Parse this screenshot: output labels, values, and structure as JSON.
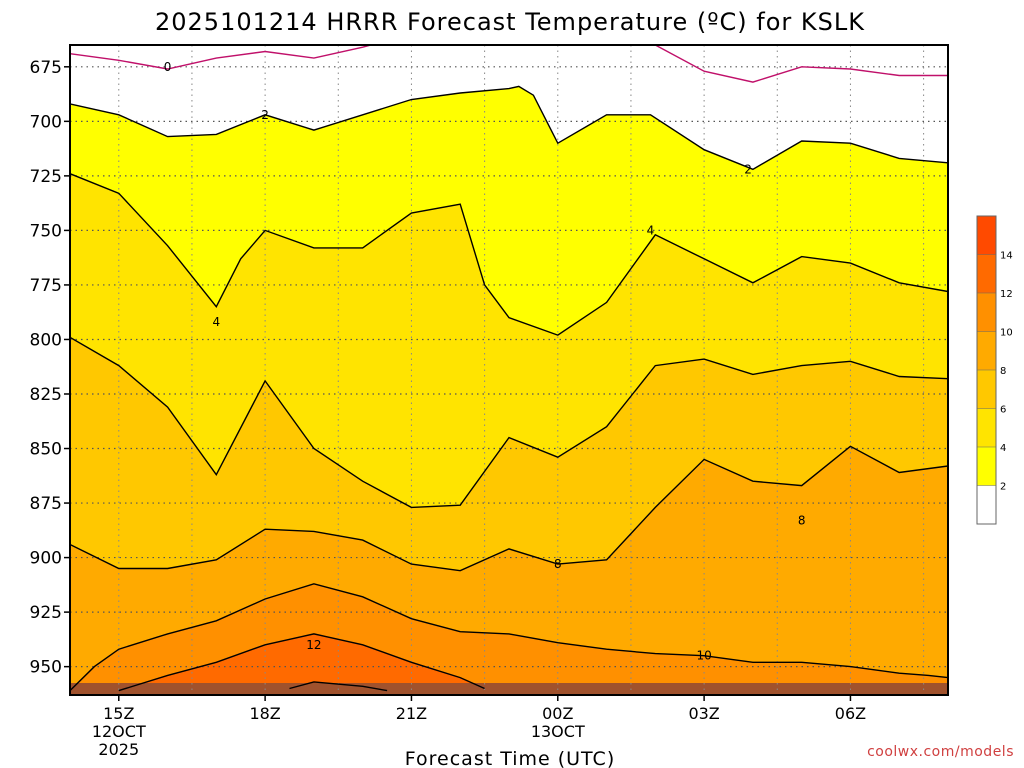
{
  "chart_data": {
    "type": "contour",
    "title": "2025101214 HRRR Forecast Temperature (ºC) for KSLK",
    "xlabel": "Forecast Time (UTC)",
    "ylabel": "",
    "y_axis": {
      "range": [
        665,
        963
      ],
      "inverted": true,
      "ticks": [
        675,
        700,
        725,
        750,
        775,
        800,
        825,
        850,
        875,
        900,
        925,
        950
      ]
    },
    "x_axis": {
      "range": [
        14.0,
        32.0
      ],
      "ticks": [
        {
          "hour": 15,
          "label": "15Z",
          "date": "12OCT",
          "year": "2025"
        },
        {
          "hour": 18,
          "label": "18Z"
        },
        {
          "hour": 21,
          "label": "21Z"
        },
        {
          "hour": 24,
          "label": "00Z",
          "date": "13OCT"
        },
        {
          "hour": 27,
          "label": "03Z"
        },
        {
          "hour": 30,
          "label": "06Z"
        }
      ]
    },
    "grid": true,
    "surface_color": "#a0522d",
    "surface_pressure": 957.5,
    "contour_labels": [
      {
        "text": "0",
        "x": 16.0,
        "p": 675
      },
      {
        "text": "2",
        "x": 18.0,
        "p": 697
      },
      {
        "text": "2",
        "x": 27.9,
        "p": 722
      },
      {
        "text": "4",
        "x": 17.0,
        "p": 792
      },
      {
        "text": "4",
        "x": 25.9,
        "p": 750
      },
      {
        "text": "8",
        "x": 24.0,
        "p": 903
      },
      {
        "text": "8",
        "x": 29.0,
        "p": 883
      },
      {
        "text": "10",
        "x": 27.0,
        "p": 945
      },
      {
        "text": "12",
        "x": 19.0,
        "p": 940
      }
    ],
    "isotherms": [
      {
        "level": 0,
        "color": "#c0106a",
        "points": [
          [
            14.0,
            669
          ],
          [
            15.0,
            672
          ],
          [
            16.0,
            676
          ],
          [
            17.0,
            671
          ],
          [
            18.0,
            668
          ],
          [
            19.0,
            671
          ],
          [
            20.0,
            666
          ],
          [
            20.5,
            663
          ]
        ],
        "points2": [
          [
            25.6,
            663
          ],
          [
            26.0,
            665
          ],
          [
            27.0,
            677
          ],
          [
            28.0,
            682
          ],
          [
            29.0,
            675
          ],
          [
            30.0,
            676
          ],
          [
            31.0,
            679
          ],
          [
            32.0,
            679
          ]
        ]
      },
      {
        "level": 2,
        "color": "#000000",
        "fill": "#ffff00",
        "points": [
          [
            14.0,
            692
          ],
          [
            15.0,
            697
          ],
          [
            16.0,
            707
          ],
          [
            17.0,
            706
          ],
          [
            18.0,
            697
          ],
          [
            19.0,
            704
          ],
          [
            20.0,
            697
          ],
          [
            21.0,
            690
          ],
          [
            22.0,
            687
          ],
          [
            23.0,
            685
          ],
          [
            23.2,
            684
          ],
          [
            23.5,
            688
          ],
          [
            24.0,
            710
          ],
          [
            25.0,
            697
          ],
          [
            25.9,
            697
          ],
          [
            27.0,
            713
          ],
          [
            28.0,
            722
          ],
          [
            29.0,
            709
          ],
          [
            30.0,
            710
          ],
          [
            31.0,
            717
          ],
          [
            32.0,
            719
          ]
        ]
      },
      {
        "level": 4,
        "color": "#000000",
        "fill": "#ffe400",
        "points": [
          [
            14.0,
            724
          ],
          [
            15.0,
            733
          ],
          [
            16.0,
            757
          ],
          [
            17.0,
            785
          ],
          [
            17.5,
            763
          ],
          [
            18.0,
            750
          ],
          [
            19.0,
            758
          ],
          [
            19.5,
            758
          ],
          [
            20.0,
            758
          ],
          [
            21.0,
            742
          ],
          [
            22.0,
            738
          ],
          [
            22.5,
            775
          ],
          [
            23.0,
            790
          ],
          [
            24.0,
            798
          ],
          [
            25.0,
            783
          ],
          [
            26.0,
            752
          ],
          [
            27.0,
            763
          ],
          [
            28.0,
            774
          ],
          [
            29.0,
            762
          ],
          [
            30.0,
            765
          ],
          [
            31.0,
            774
          ],
          [
            32.0,
            778
          ]
        ]
      },
      {
        "level": 6,
        "color": "#000000",
        "fill": "#ffc800",
        "points": [
          [
            14.0,
            799
          ],
          [
            15.0,
            812
          ],
          [
            16.0,
            831
          ],
          [
            17.0,
            862
          ],
          [
            18.0,
            819
          ],
          [
            19.0,
            850
          ],
          [
            20.0,
            865
          ],
          [
            21.0,
            877
          ],
          [
            22.0,
            876
          ],
          [
            23.0,
            845
          ],
          [
            24.0,
            854
          ],
          [
            25.0,
            840
          ],
          [
            26.0,
            812
          ],
          [
            27.0,
            809
          ],
          [
            28.0,
            816
          ],
          [
            29.0,
            812
          ],
          [
            30.0,
            810
          ],
          [
            31.0,
            817
          ],
          [
            32.0,
            818
          ]
        ]
      },
      {
        "level": 8,
        "color": "#000000",
        "fill": "#ffaa00",
        "points": [
          [
            14.0,
            894
          ],
          [
            15.0,
            905
          ],
          [
            16.0,
            905
          ],
          [
            17.0,
            901
          ],
          [
            18.0,
            887
          ],
          [
            19.0,
            888
          ],
          [
            20.0,
            892
          ],
          [
            21.0,
            903
          ],
          [
            22.0,
            906
          ],
          [
            23.0,
            896
          ],
          [
            24.0,
            903
          ],
          [
            25.0,
            901
          ],
          [
            26.0,
            877
          ],
          [
            27.0,
            855
          ],
          [
            28.0,
            865
          ],
          [
            29.0,
            867
          ],
          [
            30.0,
            849
          ],
          [
            31.0,
            861
          ],
          [
            32.0,
            858
          ]
        ]
      },
      {
        "level": 10,
        "color": "#000000",
        "fill": "#ff9000",
        "points": [
          [
            14.0,
            961
          ],
          [
            14.5,
            950
          ],
          [
            15.0,
            942
          ],
          [
            16.0,
            935
          ],
          [
            17.0,
            929
          ],
          [
            18.0,
            919
          ],
          [
            19.0,
            912
          ],
          [
            20.0,
            918
          ],
          [
            21.0,
            928
          ],
          [
            22.0,
            934
          ],
          [
            23.0,
            935
          ],
          [
            24.0,
            939
          ],
          [
            25.0,
            942
          ],
          [
            26.0,
            944
          ],
          [
            27.0,
            945
          ],
          [
            28.0,
            948
          ],
          [
            29.0,
            948
          ],
          [
            30.0,
            950
          ],
          [
            31.0,
            953
          ],
          [
            31.6,
            954
          ],
          [
            32.0,
            955
          ]
        ]
      },
      {
        "level": 12,
        "color": "#000000",
        "fill": "#ff6a00",
        "points": [
          [
            15.0,
            961
          ],
          [
            16.0,
            954
          ],
          [
            17.0,
            948
          ],
          [
            18.0,
            940
          ],
          [
            19.0,
            935
          ],
          [
            20.0,
            940
          ],
          [
            21.0,
            948
          ],
          [
            22.0,
            955
          ],
          [
            22.5,
            960
          ]
        ]
      },
      {
        "level": 14,
        "color": "#000000",
        "fill": "#ff4a00",
        "points": [
          [
            18.5,
            960
          ],
          [
            19.0,
            957
          ],
          [
            20.0,
            959
          ],
          [
            20.5,
            961
          ]
        ]
      }
    ],
    "colorbar": {
      "levels": [
        "2",
        "4",
        "6",
        "8",
        "10",
        "12",
        "14"
      ],
      "colors": [
        "#ffffff",
        "#ffff00",
        "#ffe400",
        "#ffc800",
        "#ffaa00",
        "#ff9000",
        "#ff6a00",
        "#ff4a00"
      ]
    }
  },
  "credit": "coolwx.com/models"
}
